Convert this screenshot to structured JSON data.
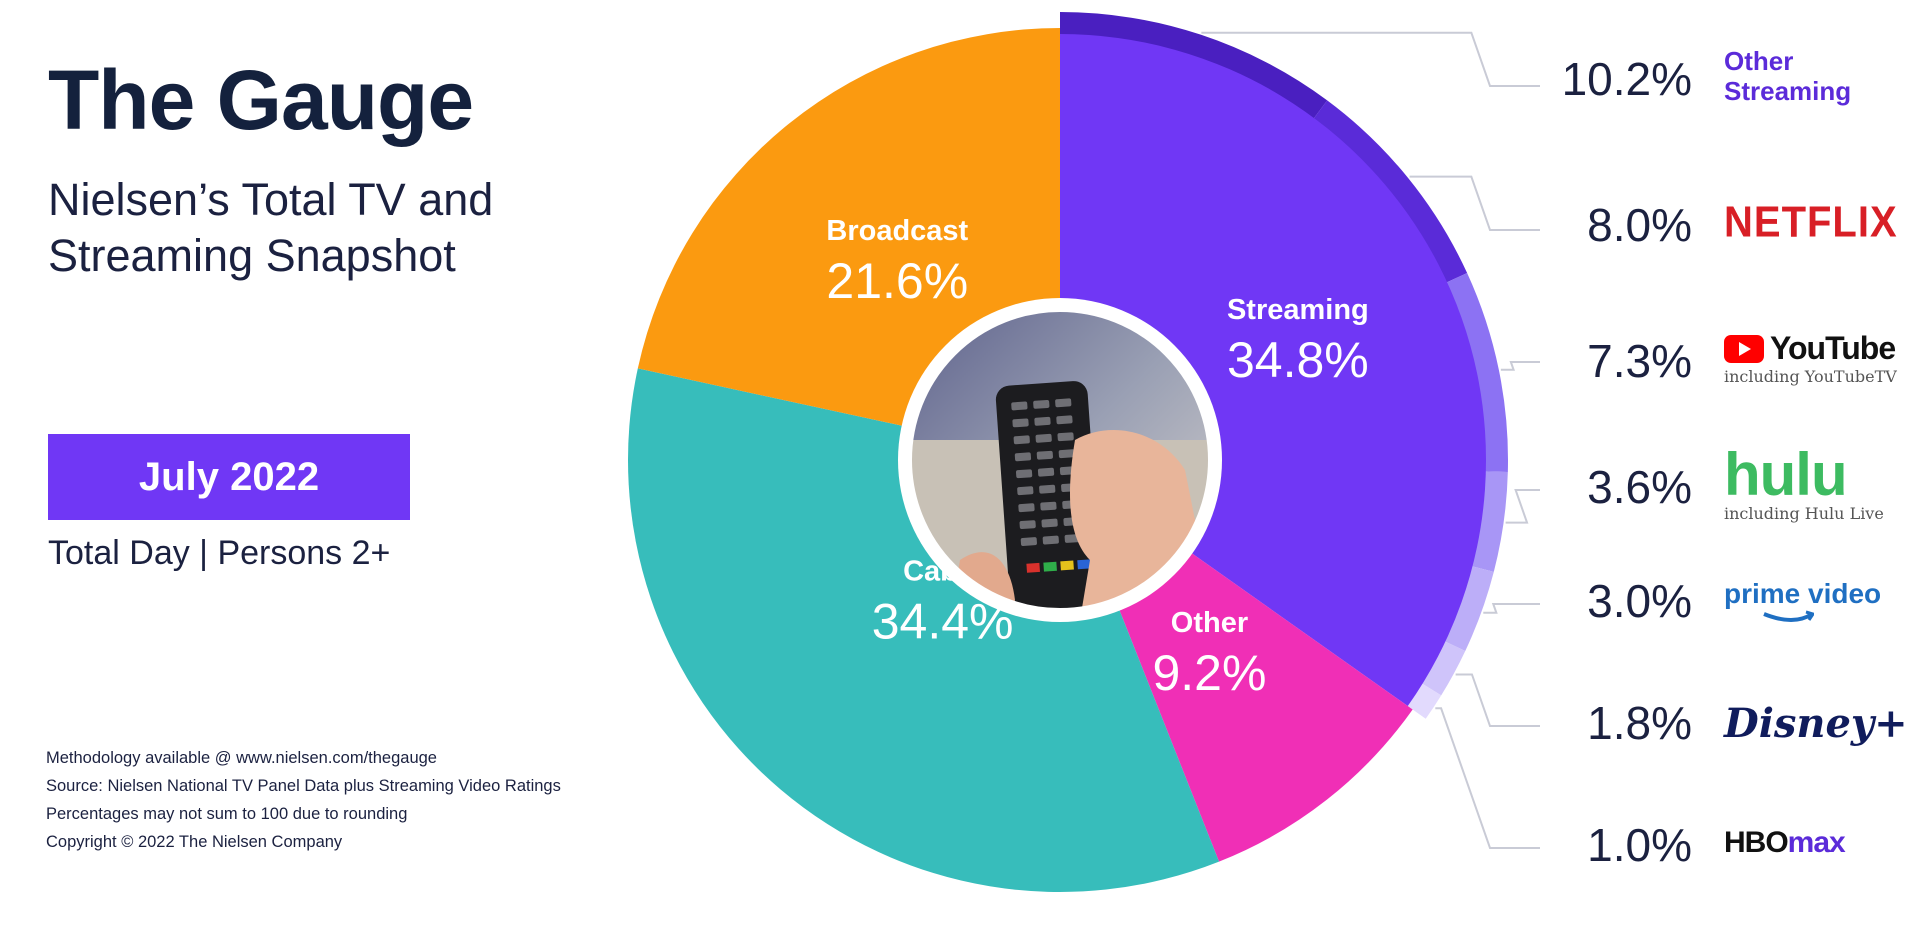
{
  "header": {
    "title": "The Gauge",
    "subtitle": "Nielsen’s Total TV and Streaming Snapshot",
    "date_badge": "July 2022",
    "audience": "Total Day | Persons 2+"
  },
  "notes": [
    "Methodology available @ www.nielsen.com/thegauge",
    "Source: Nielsen National TV Panel Data plus Streaming Video Ratings",
    "Percentages may not sum to 100 due to rounding",
    "Copyright © 2022 The Nielsen Company"
  ],
  "chart_data": {
    "type": "pie",
    "title": "The Gauge",
    "subtitle": "Nielsen’s Total TV and Streaming Snapshot",
    "slices": [
      {
        "name": "Streaming",
        "value": 34.8,
        "label": "34.8%",
        "color": "#7037f5"
      },
      {
        "name": "Other",
        "value": 9.2,
        "label": "9.2%",
        "color": "#f02fb6"
      },
      {
        "name": "Cable",
        "value": 34.4,
        "label": "34.4%",
        "color": "#37bdbb"
      },
      {
        "name": "Broadcast",
        "value": 21.6,
        "label": "21.6%",
        "color": "#fb9a10"
      }
    ],
    "streaming_breakdown": [
      {
        "name": "Other Streaming",
        "value": 10.2,
        "label": "10.2%",
        "color": "#4a1fc0"
      },
      {
        "name": "Netflix",
        "value": 8.0,
        "label": "8.0%",
        "color": "#5a2bd8"
      },
      {
        "name": "YouTube",
        "sub": "including YouTubeTV",
        "value": 7.3,
        "label": "7.3%",
        "color": "#8c72f3"
      },
      {
        "name": "Hulu",
        "sub": "including Hulu Live",
        "value": 3.6,
        "label": "3.6%",
        "color": "#a896f6"
      },
      {
        "name": "Prime Video",
        "value": 3.0,
        "label": "3.0%",
        "color": "#bcaef8"
      },
      {
        "name": "Disney+",
        "value": 1.8,
        "label": "1.8%",
        "color": "#cfc4fa"
      },
      {
        "name": "HBO Max",
        "value": 1.0,
        "label": "1.0%",
        "color": "#e2dafd"
      }
    ]
  },
  "brands": {
    "other_streaming": "Other Streaming",
    "netflix": "NETFLIX",
    "youtube": "YouTube",
    "youtube_sub": "including YouTubeTV",
    "hulu": "hulu",
    "hulu_sub": "including Hulu Live",
    "prime": "prime video",
    "disney": "Disney+",
    "hbo_a": "HBO",
    "hbo_b": "max"
  }
}
